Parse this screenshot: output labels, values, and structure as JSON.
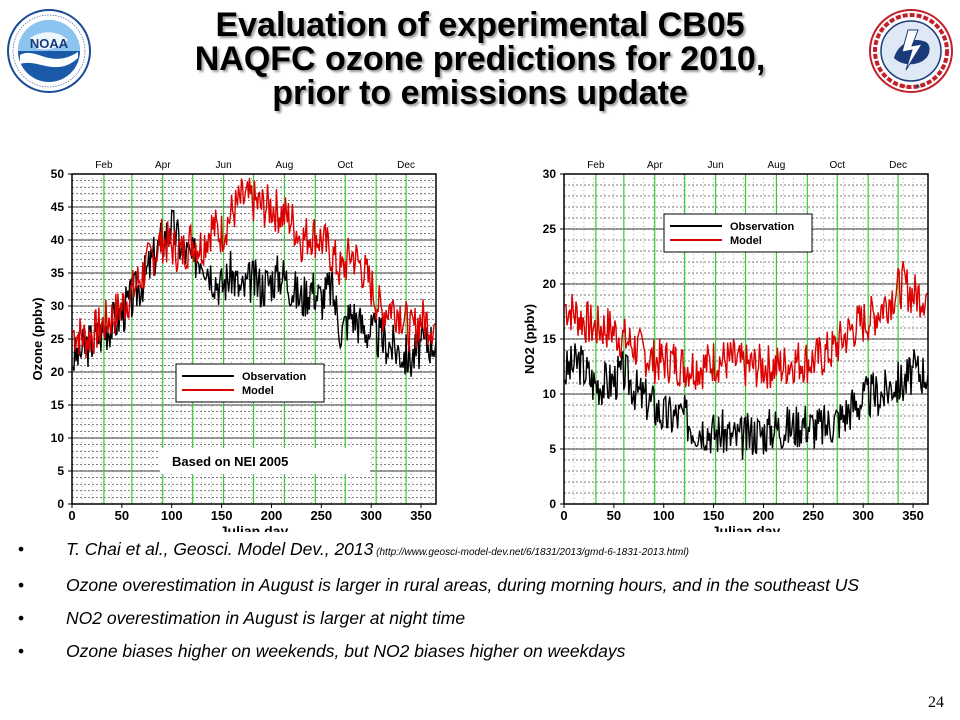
{
  "slide": {
    "title_lines": [
      "Evaluation of experimental CB05",
      "NAQFC ozone predictions for 2010,",
      "prior to emissions update"
    ],
    "page_number": "24",
    "logos": {
      "left": {
        "name": "NOAA",
        "ring_text": "NATIONAL OCEANIC AND ATMOSPHERIC ADMINISTRATION · U.S. DEPARTMENT OF COMMERCE"
      },
      "right": {
        "name": "NATIONAL WEATHER SERVICE"
      }
    },
    "bullets": [
      {
        "text": "T. Chai et al., Geosci. Model Dev., 2013",
        "small": " (http://www.geosci-model-dev.net/6/1831/2013/gmd-6-1831-2013.html)"
      },
      {
        "text": "Ozone overestimation in August is larger in rural areas, during morning hours, and in the southeast US",
        "small": ""
      },
      {
        "text": "NO2 overestimation in August is larger at night time",
        "small": ""
      },
      {
        "text": "Ozone biases higher on weekends, but NO2 biases higher on weekdays",
        "small": ""
      }
    ]
  },
  "colors": {
    "observation": "#000000",
    "model": "#dd0000",
    "month_grid": "#33cc33",
    "minor_grid": "#000000"
  },
  "chart_data": [
    {
      "type": "line",
      "xlabel": "Julian day",
      "ylabel": "Ozone (ppbv)",
      "xlim": [
        0,
        365
      ],
      "ylim": [
        0,
        50
      ],
      "xticks": [
        0,
        50,
        100,
        150,
        200,
        250,
        300,
        350
      ],
      "yticks": [
        0,
        5,
        10,
        15,
        20,
        25,
        30,
        35,
        40,
        45,
        50
      ],
      "month_ticks": [
        {
          "label": "Feb",
          "day": 32
        },
        {
          "label": "Apr",
          "day": 91
        },
        {
          "label": "Jun",
          "day": 152
        },
        {
          "label": "Aug",
          "day": 213
        },
        {
          "label": "Oct",
          "day": 274
        },
        {
          "label": "Dec",
          "day": 335
        }
      ],
      "month_lines": [
        32,
        60,
        91,
        121,
        152,
        182,
        213,
        244,
        274,
        305,
        335
      ],
      "legend": {
        "position": "lower-center",
        "entries": [
          "Observation",
          "Model"
        ]
      },
      "annotation": "Based on NEI 2005",
      "series": [
        {
          "name": "Observation",
          "x": [
            1,
            15,
            30,
            45,
            60,
            75,
            90,
            100,
            110,
            120,
            130,
            140,
            150,
            160,
            170,
            180,
            190,
            200,
            210,
            220,
            230,
            240,
            250,
            260,
            270,
            280,
            290,
            300,
            310,
            320,
            330,
            340,
            350,
            365
          ],
          "values": [
            22,
            24,
            26,
            28,
            31,
            35,
            40,
            42,
            39,
            37,
            38,
            35,
            33,
            35,
            32,
            34,
            33,
            34,
            35,
            33,
            31,
            33,
            31,
            33,
            26,
            29,
            27,
            26,
            25,
            24,
            23,
            22,
            24,
            25
          ]
        },
        {
          "name": "Model",
          "x": [
            1,
            15,
            30,
            45,
            60,
            75,
            90,
            100,
            110,
            120,
            130,
            140,
            150,
            160,
            170,
            180,
            190,
            200,
            210,
            220,
            230,
            240,
            250,
            260,
            270,
            280,
            290,
            300,
            310,
            320,
            330,
            340,
            350,
            365
          ],
          "values": [
            26,
            25,
            27,
            29,
            32,
            36,
            40,
            39,
            38,
            40,
            39,
            42,
            41,
            44,
            46,
            46,
            45,
            45,
            44,
            43,
            40,
            41,
            40,
            38,
            35,
            38,
            36,
            33,
            29,
            30,
            29,
            26,
            28,
            27
          ]
        }
      ]
    },
    {
      "type": "line",
      "xlabel": "Julian day",
      "ylabel": "NO2 (ppbv)",
      "xlim": [
        0,
        365
      ],
      "ylim": [
        0,
        30
      ],
      "xticks": [
        0,
        50,
        100,
        150,
        200,
        250,
        300,
        350
      ],
      "yticks": [
        0,
        5,
        10,
        15,
        20,
        25,
        30
      ],
      "month_ticks": [
        {
          "label": "Feb",
          "day": 32
        },
        {
          "label": "Apr",
          "day": 91
        },
        {
          "label": "Jun",
          "day": 152
        },
        {
          "label": "Aug",
          "day": 213
        },
        {
          "label": "Oct",
          "day": 274
        },
        {
          "label": "Dec",
          "day": 335
        }
      ],
      "month_lines": [
        32,
        60,
        91,
        121,
        152,
        182,
        213,
        244,
        274,
        305,
        335
      ],
      "legend": {
        "position": "top-left",
        "entries": [
          "Observation",
          "Model"
        ]
      },
      "series": [
        {
          "name": "Observation",
          "x": [
            1,
            15,
            30,
            45,
            60,
            75,
            90,
            100,
            110,
            120,
            130,
            140,
            150,
            160,
            170,
            180,
            190,
            200,
            210,
            220,
            230,
            240,
            250,
            260,
            270,
            280,
            290,
            300,
            310,
            320,
            330,
            340,
            350,
            365
          ],
          "values": [
            12,
            13,
            11,
            11,
            12,
            10,
            9,
            8,
            8,
            8,
            7,
            7,
            6.5,
            6.5,
            6,
            6,
            6.5,
            6.5,
            7,
            7,
            7,
            7.5,
            7,
            7,
            7.5,
            8,
            9,
            9.5,
            10,
            10,
            11,
            11,
            12,
            12
          ]
        },
        {
          "name": "Model",
          "x": [
            1,
            15,
            30,
            45,
            60,
            75,
            90,
            100,
            110,
            120,
            130,
            140,
            150,
            160,
            170,
            180,
            190,
            200,
            210,
            220,
            230,
            240,
            250,
            260,
            270,
            280,
            290,
            300,
            310,
            320,
            330,
            340,
            350,
            365
          ],
          "values": [
            18,
            17,
            16,
            16,
            15,
            14,
            13,
            13,
            13,
            12.5,
            12.5,
            12.5,
            13,
            13,
            13,
            12.5,
            12.5,
            12.5,
            12.5,
            12.5,
            13,
            13,
            13,
            13.5,
            14,
            15,
            16,
            16.5,
            17,
            18,
            19,
            20,
            19,
            19
          ]
        }
      ]
    }
  ]
}
